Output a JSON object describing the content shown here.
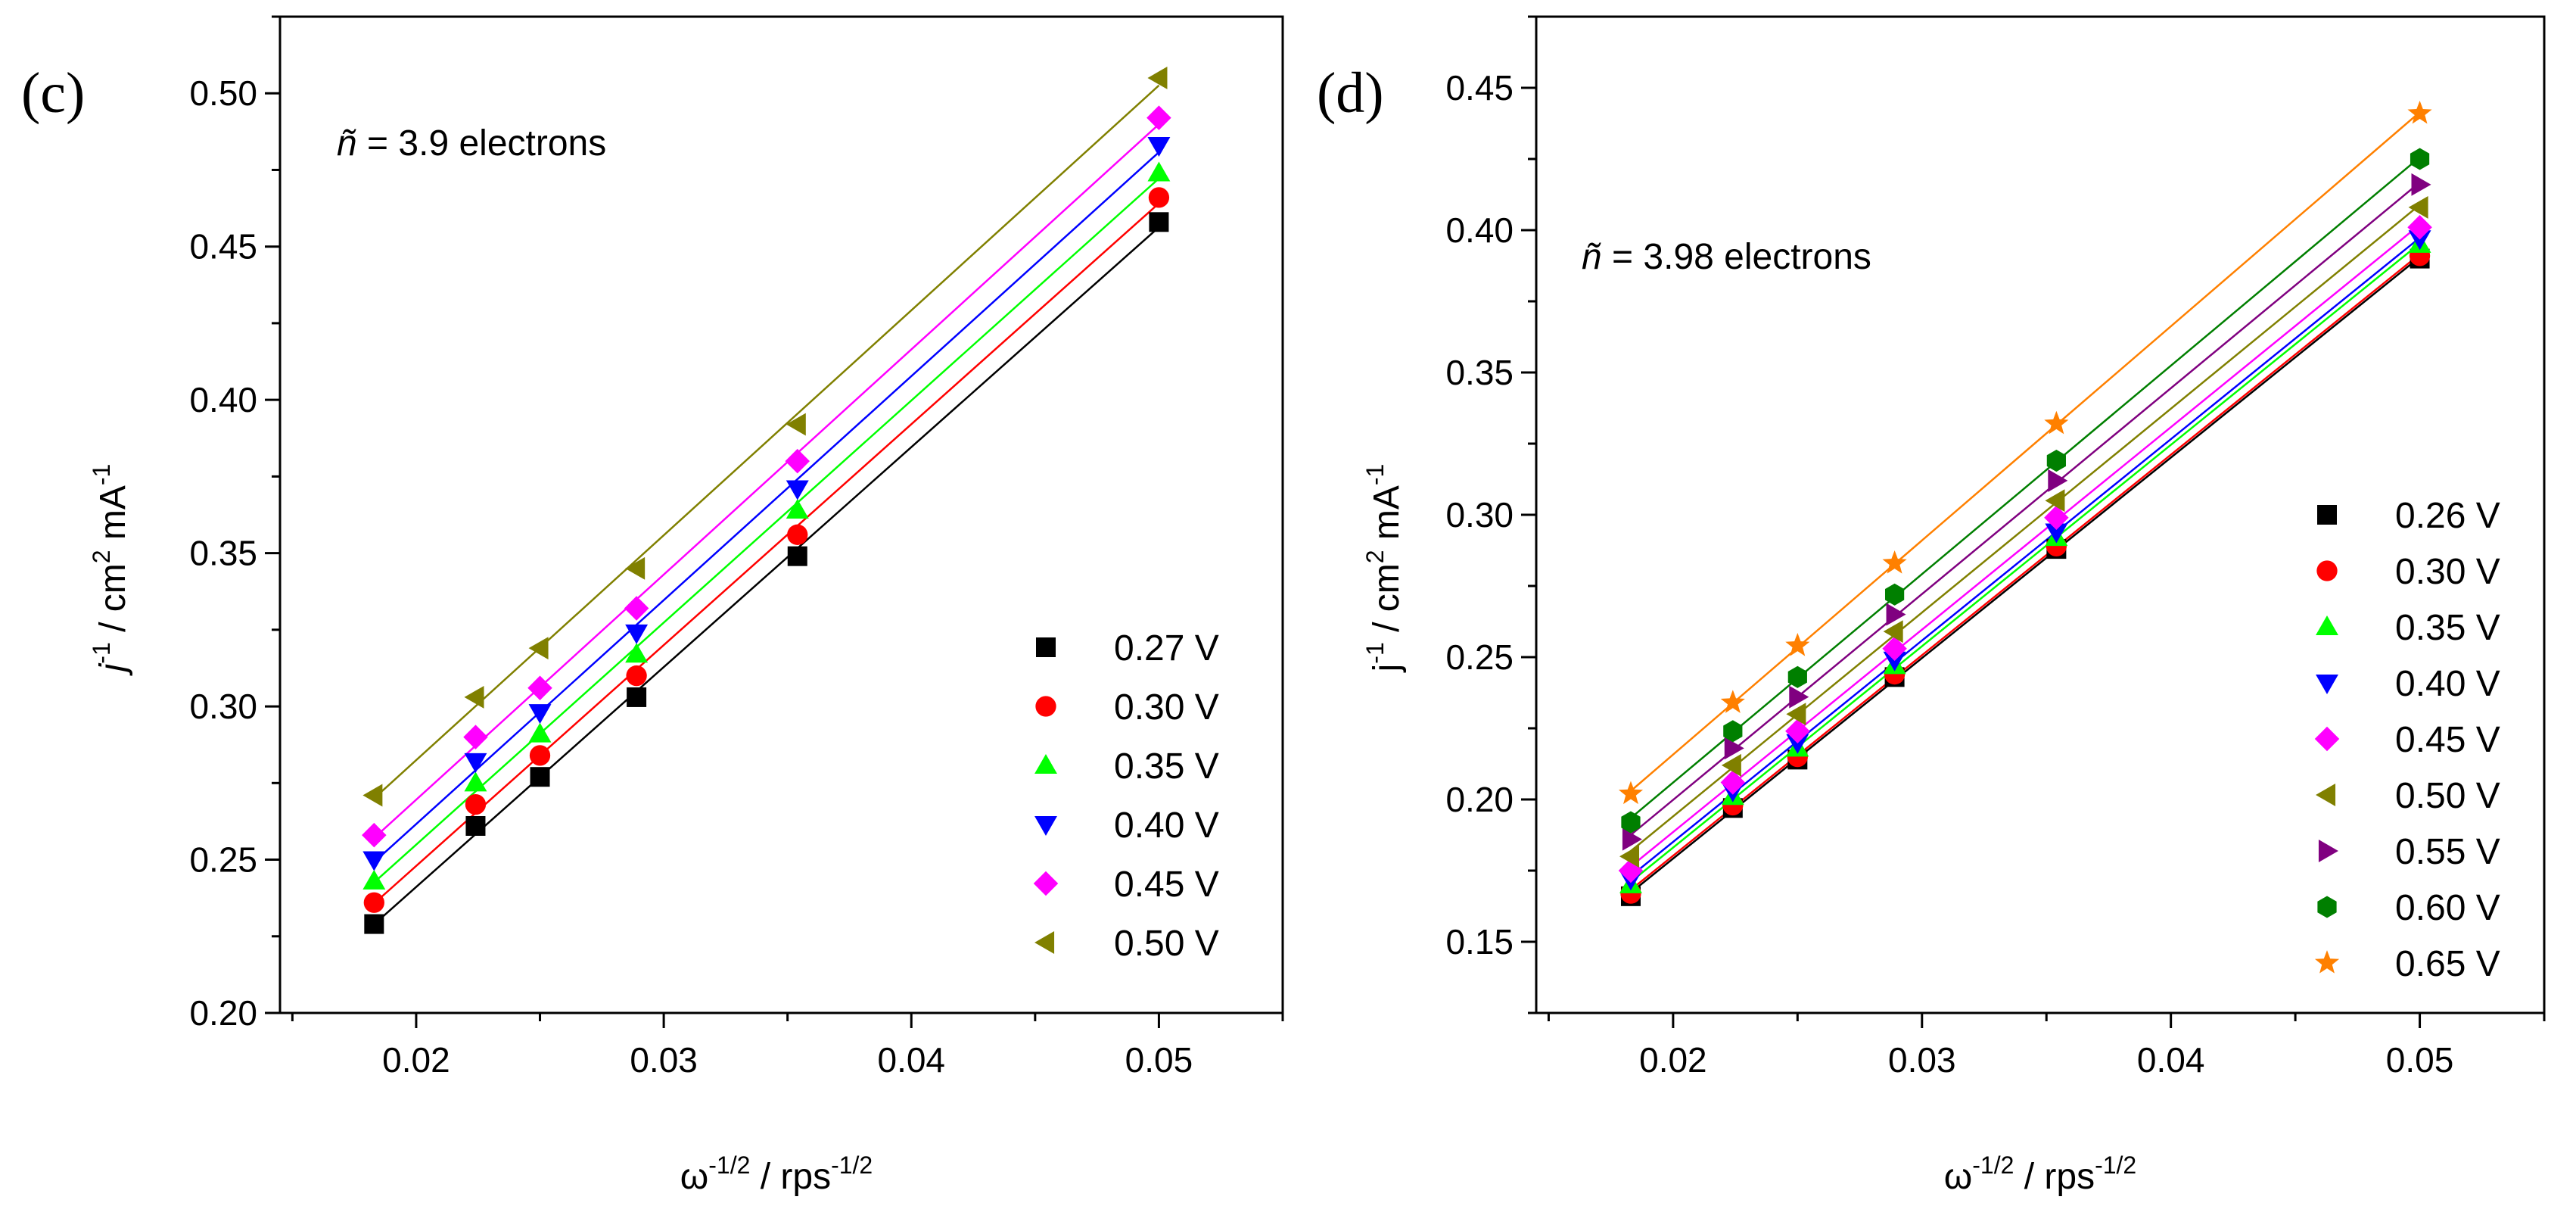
{
  "chart_data": [
    {
      "type": "scatter",
      "panel_label": "(c)",
      "annotation": {
        "symbol": "ñ",
        "text": " = 3.9 electrons"
      },
      "ylabel": {
        "base": "j",
        "sup1": "-1",
        "mid": " / cm",
        "sup2": "2",
        "unit": " mA",
        "sup3": "-1"
      },
      "xlabel": {
        "base": "ω",
        "sup1": "-1/2",
        "mid": " / rps",
        "sup2": "-1/2"
      },
      "xlim": [
        0.0145,
        0.055
      ],
      "ylim": [
        0.2,
        0.525
      ],
      "xticks": [
        0.02,
        0.03,
        0.04,
        0.05
      ],
      "xtick_labels": [
        "0.02",
        "0.03",
        "0.04",
        "0.05"
      ],
      "yticks": [
        0.2,
        0.25,
        0.3,
        0.35,
        0.4,
        0.45,
        0.5
      ],
      "ytick_labels": [
        "0.20",
        "0.25",
        "0.30",
        "0.35",
        "0.40",
        "0.45",
        "0.50"
      ],
      "legend_position": "lower-right",
      "x": [
        0.0183,
        0.0224,
        0.025,
        0.0289,
        0.0354,
        0.05
      ],
      "series": [
        {
          "name": "0.27 V",
          "color": "#000000",
          "marker": "square",
          "values": [
            0.229,
            0.261,
            0.277,
            0.303,
            0.349,
            0.458
          ]
        },
        {
          "name": "0.30 V",
          "color": "#ff0000",
          "marker": "circle",
          "values": [
            0.236,
            0.268,
            0.284,
            0.31,
            0.356,
            0.466
          ]
        },
        {
          "name": "0.35 V",
          "color": "#00ff00",
          "marker": "triangle-up",
          "values": [
            0.243,
            0.275,
            0.291,
            0.317,
            0.364,
            0.474
          ]
        },
        {
          "name": "0.40 V",
          "color": "#0000ff",
          "marker": "triangle-down",
          "values": [
            0.25,
            0.282,
            0.298,
            0.324,
            0.371,
            0.483
          ]
        },
        {
          "name": "0.45 V",
          "color": "#ff00ff",
          "marker": "diamond",
          "values": [
            0.258,
            0.29,
            0.306,
            0.332,
            0.38,
            0.492
          ]
        },
        {
          "name": "0.50 V",
          "color": "#808000",
          "marker": "triangle-left",
          "values": [
            0.271,
            0.303,
            0.319,
            0.345,
            0.392,
            0.505
          ]
        }
      ]
    },
    {
      "type": "scatter",
      "panel_label": "(d)",
      "annotation": {
        "symbol": "ñ",
        "text": " = 3.98 electrons"
      },
      "ylabel": {
        "base": "j",
        "sup1": "-1",
        "mid": " / cm",
        "sup2": "2",
        "unit": " mA",
        "sup3": "-1"
      },
      "xlabel": {
        "base": "ω",
        "sup1": "-1/2",
        "mid": " / rps",
        "sup2": "-1/2"
      },
      "xlim": [
        0.0145,
        0.055
      ],
      "ylim": [
        0.125,
        0.475
      ],
      "xticks": [
        0.02,
        0.03,
        0.04,
        0.05
      ],
      "xtick_labels": [
        "0.02",
        "0.03",
        "0.04",
        "0.05"
      ],
      "yticks": [
        0.15,
        0.2,
        0.25,
        0.3,
        0.35,
        0.4,
        0.45
      ],
      "ytick_labels": [
        "0.15",
        "0.20",
        "0.25",
        "0.30",
        "0.35",
        "0.40",
        "0.45"
      ],
      "legend_position": "lower-right",
      "x": [
        0.0183,
        0.0224,
        0.025,
        0.0289,
        0.0354,
        0.05
      ],
      "series": [
        {
          "name": "0.26 V",
          "color": "#000000",
          "marker": "square",
          "values": [
            0.166,
            0.197,
            0.214,
            0.243,
            0.288,
            0.39
          ]
        },
        {
          "name": "0.30 V",
          "color": "#ff0000",
          "marker": "circle",
          "values": [
            0.167,
            0.198,
            0.215,
            0.244,
            0.289,
            0.391
          ]
        },
        {
          "name": "0.35 V",
          "color": "#00ff00",
          "marker": "triangle-up",
          "values": [
            0.17,
            0.201,
            0.218,
            0.247,
            0.292,
            0.395
          ]
        },
        {
          "name": "0.40 V",
          "color": "#0000ff",
          "marker": "triangle-down",
          "values": [
            0.172,
            0.203,
            0.22,
            0.249,
            0.294,
            0.397
          ]
        },
        {
          "name": "0.45 V",
          "color": "#ff00ff",
          "marker": "diamond",
          "values": [
            0.175,
            0.206,
            0.224,
            0.253,
            0.299,
            0.401
          ]
        },
        {
          "name": "0.50 V",
          "color": "#808000",
          "marker": "triangle-left",
          "values": [
            0.18,
            0.212,
            0.23,
            0.259,
            0.305,
            0.408
          ]
        },
        {
          "name": "0.55 V",
          "color": "#800080",
          "marker": "triangle-right",
          "values": [
            0.186,
            0.218,
            0.236,
            0.265,
            0.312,
            0.416
          ]
        },
        {
          "name": "0.60 V",
          "color": "#007f00",
          "marker": "hexagon",
          "values": [
            0.192,
            0.224,
            0.243,
            0.272,
            0.319,
            0.425
          ]
        },
        {
          "name": "0.65 V",
          "color": "#ff8000",
          "marker": "star",
          "values": [
            0.202,
            0.234,
            0.254,
            0.283,
            0.332,
            0.441
          ]
        }
      ]
    }
  ]
}
